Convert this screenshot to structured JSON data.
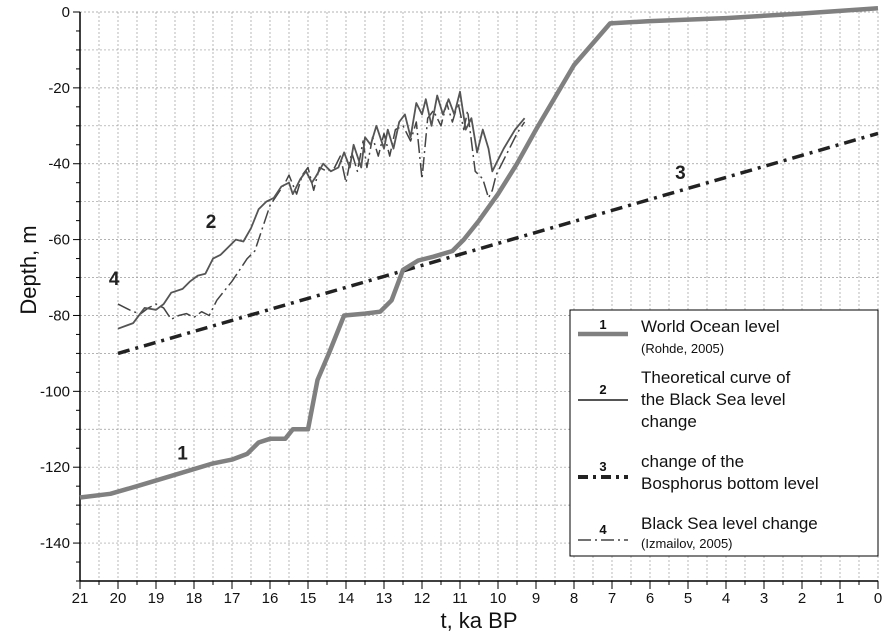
{
  "chart_data": {
    "type": "line",
    "xlabel": "t, ka BP",
    "ylabel": "Depth, m",
    "xlim": [
      21,
      0
    ],
    "ylim": [
      -150,
      0
    ],
    "x_reversed": true,
    "x_ticks": [
      "21",
      "20",
      "19",
      "18",
      "17",
      "16",
      "15",
      "14",
      "13",
      "12",
      "11",
      "10",
      "9",
      "8",
      "7",
      "6",
      "5",
      "4",
      "3",
      "2",
      "1",
      "0"
    ],
    "y_ticks": [
      "0",
      "-20",
      "-40",
      "-60",
      "-80",
      "-100",
      "-120",
      "-140"
    ],
    "grid": true,
    "legend_placement": "bottom-right",
    "colors": {
      "series1": "#808080",
      "series2": "#555555",
      "series3": "#222222",
      "series4": "#444444",
      "grid": "#9a9a9a",
      "axis": "#000000"
    },
    "series": [
      {
        "id": "1",
        "name": "World Ocean level",
        "source": "(Rohde, 2005)",
        "style": "thick-solid",
        "label_at": [
          18.3,
          -118
        ],
        "points": [
          [
            21,
            -128
          ],
          [
            20.2,
            -127
          ],
          [
            19.5,
            -125
          ],
          [
            18.5,
            -122
          ],
          [
            17.5,
            -119
          ],
          [
            17,
            -118
          ],
          [
            16.6,
            -116.5
          ],
          [
            16.3,
            -113.5
          ],
          [
            16,
            -112.5
          ],
          [
            15.6,
            -112.5
          ],
          [
            15.4,
            -110
          ],
          [
            15,
            -110
          ],
          [
            14.75,
            -97
          ],
          [
            14.45,
            -90
          ],
          [
            14.05,
            -80
          ],
          [
            13.5,
            -79.5
          ],
          [
            13.1,
            -79
          ],
          [
            12.8,
            -76
          ],
          [
            12.5,
            -68
          ],
          [
            12.1,
            -65.5
          ],
          [
            11.7,
            -64.5
          ],
          [
            11.2,
            -63
          ],
          [
            10.9,
            -60
          ],
          [
            10.5,
            -55
          ],
          [
            10,
            -48
          ],
          [
            9.5,
            -40
          ],
          [
            9,
            -31
          ],
          [
            8,
            -14
          ],
          [
            7.05,
            -3
          ],
          [
            6,
            -2.4
          ],
          [
            4,
            -1.6
          ],
          [
            2,
            -0.4
          ],
          [
            0,
            1
          ]
        ]
      },
      {
        "id": "2",
        "name": "Theoretical curve of the Black Sea level change",
        "style": "solid",
        "label_at": [
          17.55,
          -57
        ],
        "points": [
          [
            20,
            -83.5
          ],
          [
            19.6,
            -82
          ],
          [
            19.3,
            -78
          ],
          [
            19.0,
            -78.5
          ],
          [
            18.8,
            -77
          ],
          [
            18.6,
            -74
          ],
          [
            18.3,
            -73
          ],
          [
            18.1,
            -71
          ],
          [
            17.9,
            -69.5
          ],
          [
            17.7,
            -69
          ],
          [
            17.5,
            -65
          ],
          [
            17.3,
            -64
          ],
          [
            17.1,
            -62
          ],
          [
            16.9,
            -60
          ],
          [
            16.7,
            -60.5
          ],
          [
            16.5,
            -57
          ],
          [
            16.3,
            -52
          ],
          [
            16.1,
            -50
          ],
          [
            15.9,
            -49
          ],
          [
            15.7,
            -46
          ],
          [
            15.5,
            -45
          ],
          [
            15.4,
            -48
          ],
          [
            15.2,
            -44
          ],
          [
            15.05,
            -42
          ],
          [
            14.9,
            -45
          ],
          [
            14.8,
            -43.5
          ],
          [
            14.6,
            -40
          ],
          [
            14.4,
            -42
          ],
          [
            14.2,
            -41
          ],
          [
            14.05,
            -37
          ],
          [
            13.9,
            -41
          ],
          [
            13.8,
            -35
          ],
          [
            13.6,
            -41
          ],
          [
            13.5,
            -33
          ],
          [
            13.35,
            -35
          ],
          [
            13.2,
            -30
          ],
          [
            13.0,
            -36
          ],
          [
            12.9,
            -31
          ],
          [
            12.75,
            -36
          ],
          [
            12.6,
            -29
          ],
          [
            12.45,
            -27
          ],
          [
            12.3,
            -33
          ],
          [
            12.15,
            -24
          ],
          [
            12.0,
            -27
          ],
          [
            11.9,
            -23
          ],
          [
            11.75,
            -30
          ],
          [
            11.6,
            -22
          ],
          [
            11.45,
            -27
          ],
          [
            11.3,
            -23
          ],
          [
            11.15,
            -27
          ],
          [
            11.0,
            -21
          ],
          [
            10.85,
            -31
          ],
          [
            10.7,
            -28
          ],
          [
            10.55,
            -37
          ],
          [
            10.4,
            -31
          ],
          [
            10.25,
            -36
          ],
          [
            10.15,
            -42
          ],
          [
            10.05,
            -40
          ],
          [
            9.85,
            -36
          ],
          [
            9.55,
            -31
          ],
          [
            9.3,
            -28
          ]
        ]
      },
      {
        "id": "3",
        "name": "change of the Bosphorus bottom level",
        "style": "dash-dot",
        "label_at": [
          5.2,
          -44
        ],
        "points": [
          [
            20,
            -90
          ],
          [
            0,
            -32
          ]
        ]
      },
      {
        "id": "4",
        "name": "Black Sea level change",
        "source": "(Izmailov, 2005)",
        "style": "long-dash",
        "label_at": [
          20.1,
          -72
        ],
        "points": [
          [
            20,
            -77
          ],
          [
            19.8,
            -78
          ],
          [
            19.6,
            -79
          ],
          [
            19.4,
            -79.5
          ],
          [
            19.2,
            -78
          ],
          [
            19.0,
            -77
          ],
          [
            18.8,
            -78
          ],
          [
            18.6,
            -81
          ],
          [
            18.4,
            -80
          ],
          [
            18.2,
            -79.5
          ],
          [
            18.0,
            -80.5
          ],
          [
            17.8,
            -79
          ],
          [
            17.6,
            -80
          ],
          [
            17.4,
            -76
          ],
          [
            17.0,
            -71
          ],
          [
            16.6,
            -65
          ],
          [
            16.4,
            -63
          ],
          [
            16.2,
            -57
          ],
          [
            16.0,
            -51
          ],
          [
            15.8,
            -48
          ],
          [
            15.6,
            -45
          ],
          [
            15.5,
            -43
          ],
          [
            15.3,
            -48
          ],
          [
            15.15,
            -43
          ],
          [
            15.0,
            -41
          ],
          [
            14.85,
            -47
          ],
          [
            14.7,
            -41
          ],
          [
            14.5,
            -42
          ],
          [
            14.3,
            -41
          ],
          [
            14.15,
            -38
          ],
          [
            14.0,
            -45
          ],
          [
            13.85,
            -37
          ],
          [
            13.7,
            -42
          ],
          [
            13.55,
            -34
          ],
          [
            13.45,
            -41
          ],
          [
            13.3,
            -33
          ],
          [
            13.15,
            -38
          ],
          [
            13.0,
            -32
          ],
          [
            12.85,
            -38
          ],
          [
            12.7,
            -31
          ],
          [
            12.5,
            -30
          ],
          [
            12.3,
            -34
          ],
          [
            12.15,
            -29
          ],
          [
            12.0,
            -44
          ],
          [
            11.85,
            -28
          ],
          [
            11.7,
            -26
          ],
          [
            11.5,
            -30
          ],
          [
            11.35,
            -24
          ],
          [
            11.2,
            -29
          ],
          [
            11.05,
            -24
          ],
          [
            10.9,
            -31
          ],
          [
            10.8,
            -26
          ],
          [
            10.6,
            -42
          ],
          [
            10.4,
            -44
          ],
          [
            10.25,
            -49
          ],
          [
            10.15,
            -47
          ],
          [
            10.05,
            -43
          ],
          [
            9.8,
            -38
          ],
          [
            9.5,
            -32
          ],
          [
            9.3,
            -29
          ]
        ]
      }
    ]
  },
  "legend": {
    "items": [
      {
        "num": "1",
        "line1": "World Ocean level",
        "line2": "",
        "line3": "",
        "sub": "(Rohde, 2005)"
      },
      {
        "num": "2",
        "line1": "Theoretical curve of",
        "line2": "the Black Sea level",
        "line3": "change",
        "sub": ""
      },
      {
        "num": "3",
        "line1": "change of the",
        "line2": "Bosphorus bottom level",
        "line3": "",
        "sub": ""
      },
      {
        "num": "4",
        "line1": "Black Sea level change",
        "line2": "",
        "line3": "",
        "sub": "(Izmailov, 2005)"
      }
    ]
  }
}
